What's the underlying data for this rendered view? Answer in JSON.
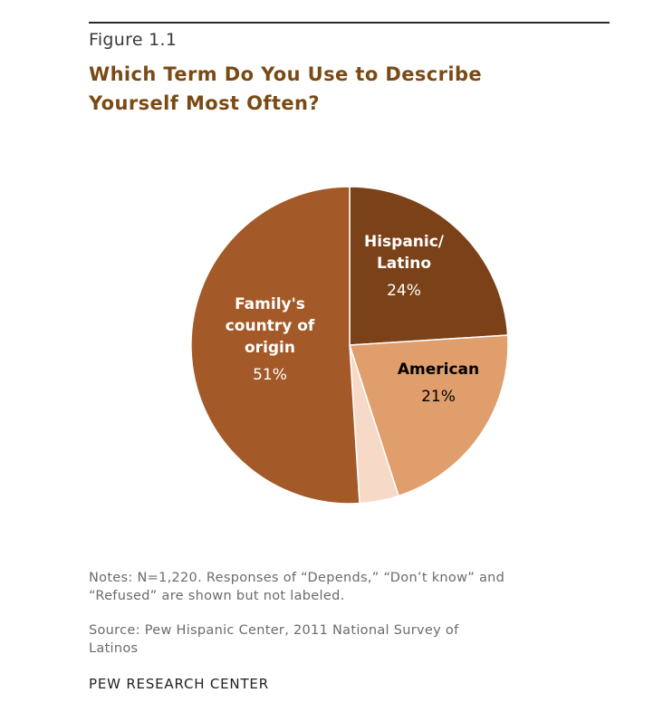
{
  "figure_label": "Figure 1.1",
  "title_lines": [
    "Which Term Do You Use to Describe",
    "Yourself Most Often?"
  ],
  "chart_data": {
    "type": "pie",
    "title": "Which Term Do You Use to Describe Yourself Most Often?",
    "slices": [
      {
        "label_lines": [
          "Hispanic/",
          "Latino"
        ],
        "value": 24,
        "value_label": "24%",
        "color": "#7b4219",
        "text_color": "#ffffff",
        "labeled": true
      },
      {
        "label_lines": [
          "American"
        ],
        "value": 21,
        "value_label": "21%",
        "color": "#df9e6b",
        "text_color": "#000000",
        "labeled": true
      },
      {
        "label_lines": [],
        "value": 4,
        "value_label": "",
        "color": "#f6d9c6",
        "text_color": "#000000",
        "labeled": false
      },
      {
        "label_lines": [
          "Family's",
          "country of",
          "origin"
        ],
        "value": 51,
        "value_label": "51%",
        "color": "#a35a28",
        "text_color": "#ffffff",
        "labeled": true
      }
    ]
  },
  "notes_lines": [
    "Notes: N=1,220.  Responses of “Depends,” “Don’t know”  and",
    "“Refused” are shown but not labeled."
  ],
  "source_lines": [
    "Source: Pew Hispanic Center, 2011 National Survey of",
    "Latinos"
  ],
  "organization": "PEW RESEARCH CENTER"
}
